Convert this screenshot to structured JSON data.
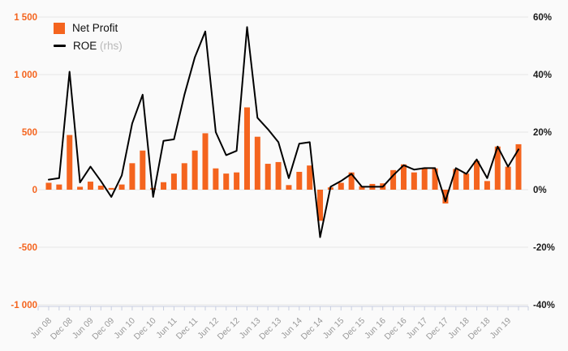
{
  "chart_data": {
    "type": "bar",
    "subtype": "bar-line-combo",
    "title": "",
    "categories": [
      "Jun 08",
      "Sep 08",
      "Dec 08",
      "Mar 09",
      "Jun 09",
      "Sep 09",
      "Dec 09",
      "Mar 10",
      "Jun 10",
      "Sep 10",
      "Dec 10",
      "Mar 11",
      "Jun 11",
      "Sep 11",
      "Dec 11",
      "Mar 12",
      "Jun 12",
      "Sep 12",
      "Dec 12",
      "Mar 13",
      "Jun 13",
      "Sep 13",
      "Dec 13",
      "Mar 14",
      "Jun 14",
      "Sep 14",
      "Dec 14",
      "Mar 15",
      "Jun 15",
      "Sep 15",
      "Dec 15",
      "Mar 16",
      "Jun 16",
      "Sep 16",
      "Dec 16",
      "Mar 17",
      "Jun 17",
      "Sep 17",
      "Dec 17",
      "Mar 18",
      "Jun 18",
      "Sep 18",
      "Dec 18",
      "Mar 19",
      "Jun 19",
      "Sep 19"
    ],
    "x_tick_labels": [
      "Jun 08",
      "Dec 08",
      "Jun 09",
      "Dec 09",
      "Jun 10",
      "Dec 10",
      "Jun 11",
      "Dec 11",
      "Jun 12",
      "Dec 12",
      "Jun 13",
      "Dec 13",
      "Jun 14",
      "Dec 14",
      "Jun 15",
      "Dec 15",
      "Jun 16",
      "Dec 16",
      "Jun 17",
      "Dec 17",
      "Jun 18",
      "Dec 18",
      "Jun 19"
    ],
    "series": [
      {
        "name": "Net Profit",
        "type": "bar",
        "axis": "left",
        "color": "#f4641e",
        "values": [
          60,
          45,
          475,
          25,
          70,
          35,
          15,
          45,
          230,
          340,
          15,
          65,
          140,
          230,
          340,
          490,
          185,
          140,
          150,
          715,
          460,
          225,
          240,
          40,
          155,
          210,
          -270,
          20,
          60,
          150,
          30,
          50,
          55,
          170,
          220,
          150,
          185,
          185,
          -120,
          180,
          140,
          250,
          75,
          375,
          200,
          395
        ]
      },
      {
        "name": "ROE",
        "type": "line",
        "axis": "right",
        "color": "#000000",
        "values": [
          3.5,
          4,
          41,
          2.5,
          8,
          3,
          -2.5,
          5,
          23,
          33,
          -2.5,
          17,
          17.5,
          33,
          46,
          55,
          20,
          12,
          13.5,
          56.5,
          25,
          21,
          16.5,
          4,
          16,
          16.5,
          -16.5,
          1,
          3,
          5.5,
          1,
          1,
          1,
          5,
          8.5,
          7,
          7.5,
          7.5,
          -4,
          7.5,
          5.5,
          10.5,
          4,
          15,
          8,
          14
        ]
      }
    ],
    "left_axis": {
      "min": -1000,
      "max": 1500,
      "tick_labels": [
        "1 500",
        "1 000",
        "500",
        "0",
        "-500",
        "-1 000"
      ],
      "tick_values": [
        1500,
        1000,
        500,
        0,
        -500,
        -1000
      ],
      "label_color": "#f4641e"
    },
    "right_axis": {
      "min": -40,
      "max": 60,
      "tick_labels": [
        "60%",
        "40%",
        "20%",
        "0%",
        "-20%",
        "-40%"
      ],
      "tick_values": [
        60,
        40,
        20,
        0,
        -20,
        -40
      ],
      "label_color": "#1a1a1a"
    },
    "legend": [
      {
        "label": "Net Profit",
        "suffix": "",
        "swatch": "square",
        "color": "#f4641e"
      },
      {
        "label": "ROE",
        "suffix": "(rhs)",
        "swatch": "line",
        "color": "#000000"
      }
    ],
    "grid": "horizontal",
    "legend_position": "top-left",
    "colors": {
      "background": "#fafafa",
      "gridline": "#e6e6e6",
      "axis_ticks": "#c8cee0",
      "x_label": "#999999"
    }
  }
}
